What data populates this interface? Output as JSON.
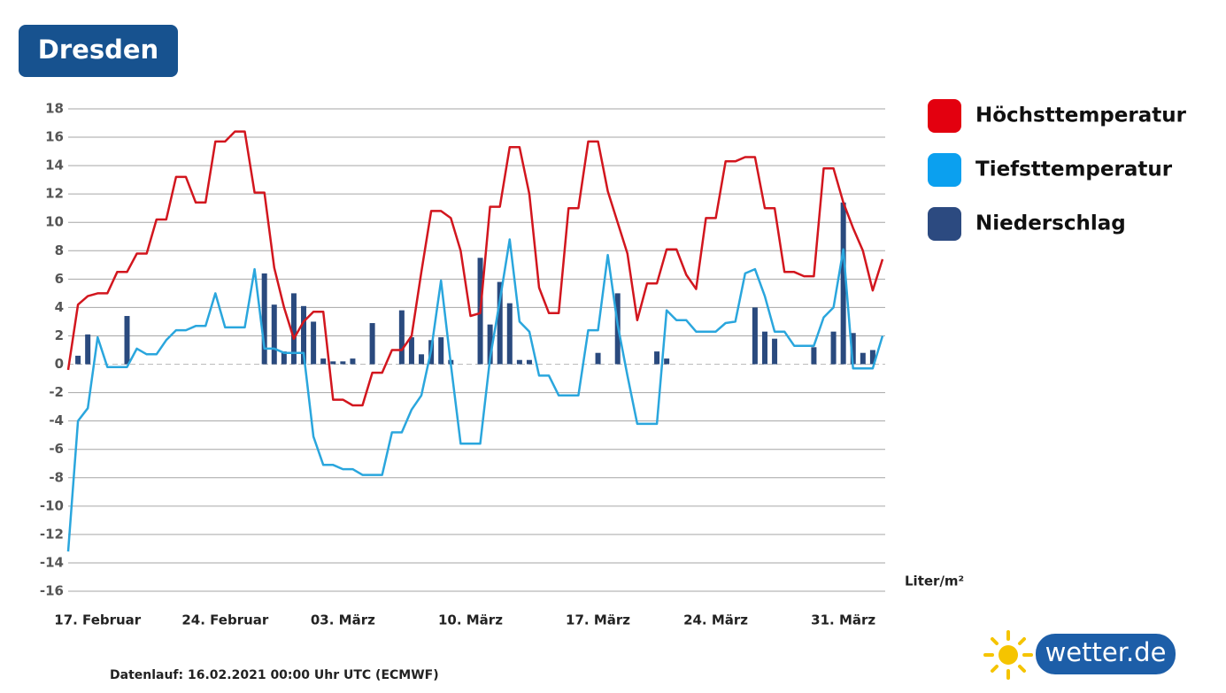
{
  "chart_data": {
    "type": "line",
    "title": "Dresden",
    "y_unit_label": "Liter/m²",
    "source": "Datenlauf: 16.02.2021 00:00 Uhr UTC (ECMWF)",
    "logo_text": "wetter.de",
    "legend": "right",
    "grid": true,
    "ylim": [
      -16,
      18
    ],
    "yticks": [
      18,
      16,
      14,
      12,
      10,
      8,
      6,
      4,
      2,
      0,
      -2,
      -4,
      -6,
      -8,
      -10,
      -12,
      -14,
      -16
    ],
    "categories": [
      null,
      null,
      null,
      "17. Februar",
      null,
      null,
      null,
      null,
      null,
      null,
      null,
      null,
      null,
      null,
      null,
      null,
      "24. Februar",
      null,
      null,
      null,
      null,
      null,
      null,
      null,
      null,
      null,
      null,
      null,
      "03. März",
      null,
      null,
      null,
      null,
      null,
      null,
      null,
      null,
      null,
      null,
      null,
      null,
      "10. März",
      null,
      null,
      null,
      null,
      null,
      null,
      null,
      null,
      null,
      null,
      null,
      null,
      "17. März",
      null,
      null,
      null,
      null,
      null,
      null,
      null,
      null,
      null,
      null,
      null,
      "24. März",
      null,
      null,
      null,
      null,
      null,
      null,
      null,
      null,
      null,
      null,
      null,
      null,
      "31. März",
      null,
      null,
      null,
      null
    ],
    "series": [
      {
        "name": "Höchsttemperatur",
        "type": "line",
        "color": "#d2161e",
        "legend_color": "#e3000f",
        "values": [
          -0.4,
          4.2,
          4.8,
          5.0,
          5.0,
          6.5,
          6.5,
          7.8,
          7.8,
          10.2,
          10.2,
          13.2,
          13.2,
          11.4,
          11.4,
          15.7,
          15.7,
          16.4,
          16.4,
          12.1,
          12.1,
          6.8,
          4.0,
          1.8,
          3.0,
          3.7,
          3.7,
          -2.5,
          -2.5,
          -2.9,
          -2.9,
          -0.6,
          -0.6,
          1.0,
          1.0,
          2.0,
          6.5,
          10.8,
          10.8,
          10.3,
          8.0,
          3.4,
          3.6,
          11.1,
          11.1,
          15.3,
          15.3,
          12.0,
          5.4,
          3.6,
          3.6,
          11.0,
          11.0,
          15.7,
          15.7,
          12.2,
          10.0,
          7.8,
          3.1,
          5.7,
          5.7,
          8.1,
          8.1,
          6.3,
          5.3,
          10.3,
          10.3,
          14.3,
          14.3,
          14.6,
          14.6,
          11.0,
          11.0,
          6.5,
          6.5,
          6.2,
          6.2,
          13.8,
          13.8,
          11.4,
          9.6,
          8.0,
          5.2,
          7.4
        ]
      },
      {
        "name": "Tiefsttemperatur",
        "type": "line",
        "color": "#2aa6dd",
        "legend_color": "#0ba0ef",
        "values": [
          -13.2,
          -4.0,
          -3.1,
          1.9,
          -0.2,
          -0.2,
          -0.2,
          1.1,
          0.7,
          0.7,
          1.7,
          2.4,
          2.4,
          2.7,
          2.7,
          5.0,
          2.6,
          2.6,
          2.6,
          6.7,
          1.1,
          1.1,
          0.8,
          0.8,
          0.8,
          -5.1,
          -7.1,
          -7.1,
          -7.4,
          -7.4,
          -7.8,
          -7.8,
          -7.8,
          -4.8,
          -4.8,
          -3.2,
          -2.2,
          1.0,
          5.9,
          0.0,
          -5.6,
          -5.6,
          -5.6,
          0.4,
          4.5,
          8.8,
          3.0,
          2.3,
          -0.8,
          -0.8,
          -2.2,
          -2.2,
          -2.2,
          2.4,
          2.4,
          7.7,
          2.8,
          -0.8,
          -4.2,
          -4.2,
          -4.2,
          3.8,
          3.1,
          3.1,
          2.3,
          2.3,
          2.3,
          2.9,
          3.0,
          6.4,
          6.7,
          4.8,
          2.3,
          2.3,
          1.3,
          1.3,
          1.3,
          3.3,
          4.0,
          8.1,
          -0.3,
          -0.3,
          -0.3,
          2.0
        ]
      },
      {
        "name": "Niederschlag",
        "type": "bar",
        "color": "#2a4a7e",
        "legend_color": "#2c4a80",
        "values": [
          null,
          0.6,
          2.1,
          null,
          null,
          null,
          3.4,
          null,
          null,
          null,
          null,
          null,
          null,
          null,
          null,
          null,
          null,
          null,
          null,
          null,
          6.4,
          4.2,
          0.9,
          5.0,
          4.1,
          3.0,
          0.4,
          0.2,
          0.2,
          0.4,
          null,
          2.9,
          null,
          null,
          3.8,
          1.9,
          0.7,
          1.7,
          1.9,
          0.3,
          null,
          null,
          7.5,
          2.8,
          5.8,
          4.3,
          0.3,
          0.3,
          null,
          null,
          null,
          null,
          null,
          null,
          0.8,
          null,
          5.0,
          null,
          null,
          null,
          0.9,
          0.4,
          null,
          null,
          null,
          null,
          null,
          null,
          null,
          null,
          4.0,
          2.3,
          1.8,
          null,
          null,
          null,
          1.2,
          null,
          2.3,
          11.4,
          2.2,
          0.8,
          1.0,
          null
        ]
      }
    ]
  }
}
